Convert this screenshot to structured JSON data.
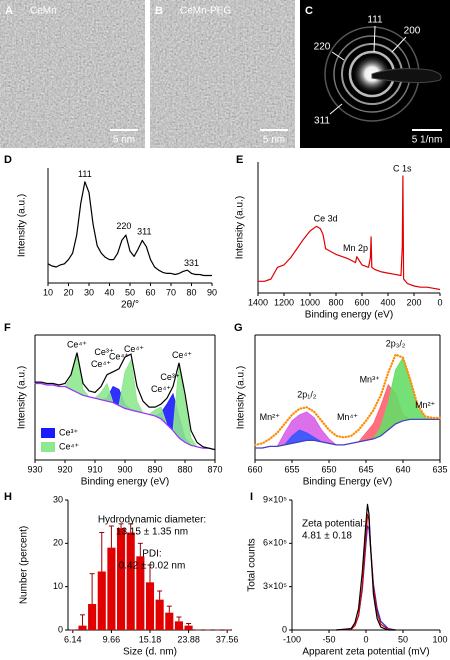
{
  "images": [
    {
      "label": "A",
      "caption": "CeMn",
      "scale_bar": "5 nm"
    },
    {
      "label": "B",
      "caption": "CeMn-PEG",
      "scale_bar": "5 nm"
    },
    {
      "label": "C",
      "rings": [
        "111",
        "200",
        "220",
        "311"
      ],
      "scale_bar": "5 1/nm"
    }
  ],
  "chart_data": [
    {
      "type": "line",
      "label": "D",
      "x_label": "2θ/°",
      "y_label": "Intensity (a.u.)",
      "x": [
        10,
        12,
        14,
        16,
        18,
        20,
        22,
        24,
        26,
        28,
        30,
        32,
        34,
        36,
        38,
        40,
        42,
        44,
        46,
        48,
        50,
        52,
        54,
        56,
        58,
        60,
        62,
        64,
        66,
        68,
        70,
        72,
        74,
        76,
        78,
        80,
        82,
        84,
        86,
        88,
        90
      ],
      "series": [
        {
          "color": "#000000",
          "values": [
            18,
            16,
            15,
            17,
            18,
            22,
            28,
            45,
            75,
            95,
            85,
            55,
            35,
            28,
            24,
            22,
            22,
            28,
            40,
            45,
            30,
            25,
            32,
            40,
            34,
            22,
            15,
            12,
            10,
            9,
            9,
            8,
            9,
            11,
            12,
            9,
            8,
            8,
            7,
            7,
            7
          ]
        }
      ],
      "xlim": [
        10,
        90
      ],
      "xticks": [
        10,
        20,
        30,
        40,
        50,
        60,
        70,
        80,
        90
      ],
      "ylim": [
        0,
        108
      ],
      "annotations": [
        {
          "text": "111",
          "x": 28,
          "y": 102
        },
        {
          "text": "220",
          "x": 47,
          "y": 53
        },
        {
          "text": "311",
          "x": 57,
          "y": 48
        },
        {
          "text": "331",
          "x": 80,
          "y": 18
        }
      ]
    },
    {
      "type": "line",
      "label": "E",
      "x_label": "Binding energy (eV)",
      "y_label": "Intensity (a.u.)",
      "x": [
        1400,
        1350,
        1300,
        1250,
        1200,
        1150,
        1100,
        1050,
        1000,
        950,
        920,
        900,
        880,
        850,
        800,
        750,
        700,
        650,
        640,
        600,
        550,
        535,
        530,
        525,
        500,
        450,
        400,
        350,
        300,
        290,
        285,
        280,
        250,
        200,
        150,
        100,
        50,
        0
      ],
      "series": [
        {
          "color": "#e00000",
          "values": [
            10,
            10,
            12,
            22,
            24,
            30,
            38,
            46,
            53,
            57,
            55,
            50,
            38,
            36,
            33,
            31,
            29,
            26,
            31,
            24,
            22,
            30,
            48,
            22,
            20,
            18,
            17,
            16,
            15,
            40,
            100,
            12,
            8,
            6,
            5,
            5,
            4,
            3
          ]
        }
      ],
      "xlim": [
        1400,
        0
      ],
      "xticks": [
        1400,
        1200,
        1000,
        800,
        600,
        400,
        200,
        0
      ],
      "ylim": [
        0,
        112
      ],
      "annotations": [
        {
          "text": "Ce 3d",
          "x": 880,
          "y": 63
        },
        {
          "text": "Mn 2p",
          "x": 650,
          "y": 38
        },
        {
          "text": "C 1s",
          "x": 290,
          "y": 106
        }
      ]
    },
    {
      "type": "area",
      "label": "F",
      "x_label": "Binding energy (eV)",
      "y_label": "Intensity (a.u.)",
      "frame": true,
      "legend": "lower left",
      "baseline_series": 0,
      "x": [
        930,
        928,
        926,
        924,
        922,
        920,
        918,
        916,
        914,
        912,
        910,
        908,
        906,
        904,
        902,
        900,
        898,
        896,
        894,
        892,
        890,
        888,
        886,
        884,
        882,
        880,
        878,
        876,
        874,
        872,
        870
      ],
      "series": [
        {
          "style": "line",
          "color": "#9b30ff",
          "values": [
            62,
            62,
            61,
            61,
            60,
            60,
            58,
            56,
            54,
            53,
            52,
            51,
            50,
            49,
            47,
            45,
            44,
            43,
            42,
            41,
            40,
            38,
            34,
            30,
            25,
            22,
            20,
            19,
            18,
            18,
            17
          ]
        },
        {
          "name": "Ce³⁺",
          "style": "fill",
          "color": "#1a1aff",
          "values": [
            62,
            62,
            61,
            61,
            60,
            60,
            58,
            56,
            54,
            53,
            52,
            51,
            52,
            60,
            58,
            48,
            44,
            43,
            42,
            41,
            40,
            42,
            48,
            55,
            40,
            25,
            20,
            19,
            18,
            18,
            17
          ]
        },
        {
          "name": "Ce⁴⁺",
          "style": "fill",
          "color": "#8ee88e",
          "values": [
            62,
            62,
            61,
            61,
            60,
            60,
            66,
            82,
            58,
            53,
            52,
            56,
            62,
            49,
            47,
            70,
            78,
            50,
            42,
            41,
            44,
            46,
            34,
            30,
            75,
            50,
            25,
            19,
            18,
            18,
            17
          ]
        },
        {
          "style": "line",
          "color": "#000000",
          "values": [
            63,
            63,
            62,
            62,
            61,
            62,
            68,
            83,
            62,
            57,
            56,
            60,
            68,
            70,
            72,
            80,
            82,
            60,
            50,
            46,
            46,
            48,
            52,
            60,
            76,
            55,
            30,
            22,
            19,
            18,
            17
          ]
        }
      ],
      "xlim": [
        930,
        870
      ],
      "xticks": [
        930,
        920,
        910,
        900,
        890,
        880,
        870
      ],
      "ylim": [
        10,
        95
      ],
      "annotations": [
        {
          "text": "Ce⁴⁺",
          "x": 916,
          "y": 88
        },
        {
          "text": "Ce³⁺",
          "x": 907,
          "y": 83
        },
        {
          "text": "Ce⁴⁺",
          "x": 902,
          "y": 80
        },
        {
          "text": "Ce⁴⁺",
          "x": 897,
          "y": 85
        },
        {
          "text": "Ce⁴⁺",
          "x": 908,
          "y": 75
        },
        {
          "text": "Ce³⁺",
          "x": 885,
          "y": 66
        },
        {
          "text": "Ce⁴⁺",
          "x": 888,
          "y": 58
        },
        {
          "text": "Ce⁴⁺",
          "x": 881,
          "y": 81
        }
      ]
    },
    {
      "type": "area",
      "label": "G",
      "x_label": "Binding Energy (eV)",
      "y_label": "Intensity (a.u.)",
      "frame": true,
      "baseline_series": 0,
      "x": [
        660,
        659,
        658,
        657,
        656,
        655,
        654,
        653,
        652,
        651,
        650,
        649,
        648,
        647,
        646,
        645,
        644,
        643,
        642,
        641,
        640,
        639,
        638,
        637,
        636,
        635
      ],
      "series": [
        {
          "style": "line",
          "color": "#4040c0",
          "values": [
            30,
            30,
            31,
            31,
            32,
            33,
            34,
            35,
            35,
            34,
            33,
            32,
            32,
            33,
            34,
            35,
            36,
            38,
            42,
            46,
            48,
            49,
            49,
            49,
            49,
            49
          ]
        },
        {
          "style": "fill",
          "color": "#d760e8",
          "values": [
            30,
            30,
            31,
            31,
            40,
            48,
            52,
            54,
            50,
            42,
            36,
            32,
            32,
            33,
            34,
            35,
            36,
            38,
            42,
            46,
            48,
            49,
            49,
            49,
            49,
            49
          ]
        },
        {
          "style": "fill",
          "color": "#3358ff",
          "values": [
            30,
            30,
            31,
            31,
            32,
            38,
            42,
            40,
            37,
            34,
            33,
            32,
            32,
            33,
            34,
            35,
            36,
            38,
            42,
            46,
            48,
            49,
            49,
            49,
            49,
            49
          ]
        },
        {
          "style": "fill",
          "color": "#ff6070",
          "values": [
            30,
            30,
            31,
            31,
            32,
            33,
            34,
            35,
            35,
            34,
            33,
            32,
            32,
            33,
            34,
            40,
            46,
            58,
            72,
            66,
            52,
            49,
            49,
            49,
            49,
            49
          ]
        },
        {
          "style": "fill",
          "color": "#66dd66",
          "values": [
            30,
            30,
            31,
            31,
            32,
            33,
            34,
            35,
            35,
            34,
            33,
            32,
            32,
            33,
            34,
            35,
            36,
            44,
            60,
            82,
            90,
            75,
            56,
            50,
            49,
            49
          ]
        },
        {
          "style": "dots",
          "color": "#ff8c00",
          "values": [
            32,
            33,
            36,
            40,
            46,
            52,
            56,
            57,
            54,
            48,
            42,
            38,
            37,
            38,
            42,
            48,
            55,
            65,
            80,
            92,
            90,
            75,
            58,
            51,
            50,
            50
          ]
        }
      ],
      "xlim": [
        660,
        635
      ],
      "xticks": [
        660,
        655,
        650,
        645,
        640,
        635
      ],
      "ylim": [
        22,
        105
      ],
      "annotations": [
        {
          "text": "2p₁/₂",
          "x": 653,
          "y": 65
        },
        {
          "text": "2p₃/₂",
          "x": 641,
          "y": 99
        },
        {
          "text": "Mn²⁺",
          "x": 658,
          "y": 50
        },
        {
          "text": "Mn⁴⁺",
          "x": 647.5,
          "y": 50
        },
        {
          "text": "Mn³⁺",
          "x": 644.5,
          "y": 75
        },
        {
          "text": "Mn²⁺",
          "x": 637,
          "y": 58
        }
      ]
    },
    {
      "type": "bar",
      "label": "H",
      "x_label": "Size (d. nm)",
      "y_label": "Number (percent)",
      "color": "#e00000",
      "categories": [
        "6.14",
        null,
        null,
        null,
        "9.66",
        null,
        null,
        null,
        "15.18",
        null,
        null,
        null,
        "23.88",
        null,
        null,
        null,
        "37.56"
      ],
      "values": [
        0,
        1,
        6,
        13.5,
        19,
        23.5,
        22.5,
        17,
        11,
        7,
        4,
        2,
        1,
        0,
        0,
        0,
        0
      ],
      "errors": [
        0,
        2.5,
        7,
        9,
        5,
        1,
        2,
        3,
        4,
        2,
        1.5,
        1,
        0.5,
        0,
        0,
        0,
        0
      ],
      "ylim": [
        0,
        30
      ],
      "yticks": [
        0,
        10,
        20,
        30
      ],
      "notes": [
        "Hydrodynamic diameter:",
        "13.15 ± 1.35 nm",
        "PDI:",
        "0.42 ± 0.02 nm"
      ]
    },
    {
      "type": "line",
      "label": "I",
      "x_label": "Apparent zeta potential (mV)",
      "y_label": "Total counts",
      "x": [
        -40,
        -20,
        -15,
        -10,
        -5,
        0,
        2,
        4,
        6,
        10,
        15,
        20,
        30,
        40
      ],
      "series": [
        {
          "color": "#2030e0",
          "values": [
            0,
            5000,
            30000,
            100000,
            280000,
            600000,
            720000,
            700000,
            580000,
            320000,
            150000,
            60000,
            10000,
            0
          ]
        },
        {
          "color": "#e00000",
          "values": [
            0,
            5000,
            30000,
            100000,
            300000,
            650000,
            800000,
            760000,
            600000,
            300000,
            120000,
            40000,
            5000,
            0
          ]
        },
        {
          "color": "#000000",
          "values": [
            0,
            10000,
            50000,
            150000,
            400000,
            750000,
            870000,
            800000,
            600000,
            250000,
            80000,
            20000,
            0,
            0
          ]
        }
      ],
      "xlim": [
        -100,
        100
      ],
      "xticks": [
        -100,
        -50,
        0,
        50,
        100
      ],
      "ylim": [
        0,
        900000
      ],
      "yticks": [
        0,
        {
          "value": 300000,
          "label": "3×10⁵"
        },
        {
          "value": 600000,
          "label": "6×10⁵"
        },
        {
          "value": 900000,
          "label": "9×10⁵"
        }
      ],
      "notes": [
        "Zeta potential:",
        "4.81 ± 0.18"
      ]
    }
  ]
}
